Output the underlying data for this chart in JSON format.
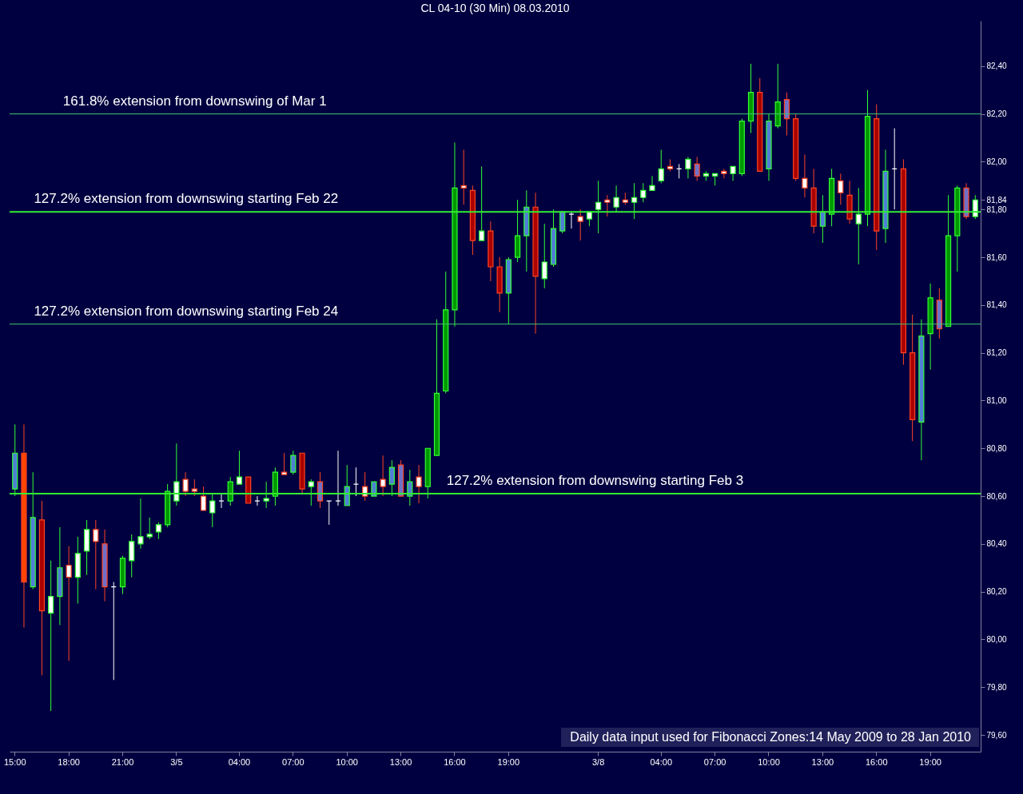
{
  "chart_data": {
    "type": "candlestick",
    "title": "CL 04-10 (30 Min)  08.03.2010",
    "categories": [
      "15:00",
      null,
      null,
      null,
      null,
      null,
      "18:00",
      null,
      null,
      null,
      null,
      null,
      "21:00",
      null,
      null,
      null,
      null,
      null,
      "3/5",
      null,
      null,
      null,
      null,
      null,
      null,
      "04:00",
      null,
      null,
      null,
      null,
      null,
      "07:00",
      null,
      null,
      null,
      null,
      null,
      "10:00",
      null,
      null,
      null,
      null,
      null,
      "13:00",
      null,
      null,
      null,
      null,
      null,
      "16:00",
      null,
      null,
      null,
      null,
      null,
      "19:00",
      null,
      null,
      null,
      null,
      null,
      null,
      null,
      null,
      null,
      "3/8",
      null,
      null,
      null,
      null,
      null,
      null,
      "04:00",
      null,
      null,
      null,
      null,
      null,
      "07:00",
      null,
      null,
      null,
      null,
      null,
      "10:00",
      null,
      null,
      null,
      null,
      null,
      "13:00",
      null,
      null,
      null,
      null,
      null,
      "16:00",
      null,
      null,
      null,
      null,
      null,
      "19:00",
      null,
      null,
      null,
      null,
      null
    ],
    "ohlc": [
      [
        80.63,
        80.9,
        80.6,
        80.78
      ],
      [
        80.78,
        80.9,
        80.05,
        80.24
      ],
      [
        80.22,
        80.7,
        80.21,
        80.51
      ],
      [
        80.5,
        80.58,
        79.85,
        80.12
      ],
      [
        80.11,
        80.33,
        79.7,
        80.18
      ],
      [
        80.18,
        80.47,
        80.06,
        80.3
      ],
      [
        80.31,
        80.39,
        79.91,
        80.26
      ],
      [
        80.26,
        80.43,
        80.15,
        80.36
      ],
      [
        80.37,
        80.5,
        80.27,
        80.46
      ],
      [
        80.46,
        80.5,
        80.21,
        80.41
      ],
      [
        80.4,
        80.46,
        80.16,
        80.22
      ],
      [
        80.22,
        80.24,
        79.83,
        80.22
      ],
      [
        80.22,
        80.35,
        80.19,
        80.34
      ],
      [
        80.33,
        80.44,
        80.26,
        80.41
      ],
      [
        80.4,
        80.59,
        80.38,
        80.43
      ],
      [
        80.43,
        80.51,
        80.42,
        80.44
      ],
      [
        80.45,
        80.49,
        80.42,
        80.48
      ],
      [
        80.48,
        80.65,
        80.47,
        80.62
      ],
      [
        80.58,
        80.82,
        80.56,
        80.66
      ],
      [
        80.67,
        80.7,
        80.6,
        80.62
      ],
      [
        80.63,
        80.67,
        80.6,
        80.62
      ],
      [
        80.6,
        80.64,
        80.54,
        80.54
      ],
      [
        80.53,
        80.61,
        80.47,
        80.58
      ],
      [
        80.58,
        80.61,
        80.55,
        80.58
      ],
      [
        80.58,
        80.68,
        80.56,
        80.66
      ],
      [
        80.65,
        80.79,
        80.65,
        80.68
      ],
      [
        80.68,
        80.68,
        80.57,
        80.57
      ],
      [
        80.58,
        80.6,
        80.56,
        80.58
      ],
      [
        80.58,
        80.66,
        80.55,
        80.59
      ],
      [
        80.6,
        80.72,
        80.56,
        80.7
      ],
      [
        80.7,
        80.78,
        80.69,
        80.69
      ],
      [
        80.7,
        80.79,
        80.69,
        80.77
      ],
      [
        80.78,
        80.78,
        80.61,
        80.63
      ],
      [
        80.64,
        80.67,
        80.56,
        80.66
      ],
      [
        80.66,
        80.7,
        80.55,
        80.58
      ],
      [
        80.58,
        80.58,
        80.48,
        80.58
      ],
      [
        80.58,
        80.79,
        80.56,
        80.58
      ],
      [
        80.56,
        80.73,
        80.56,
        80.64
      ],
      [
        80.65,
        80.72,
        80.6,
        80.65
      ],
      [
        80.64,
        80.7,
        80.58,
        80.6
      ],
      [
        80.6,
        80.66,
        80.6,
        80.66
      ],
      [
        80.67,
        80.77,
        80.6,
        80.64
      ],
      [
        80.65,
        80.75,
        80.6,
        80.72
      ],
      [
        80.73,
        80.75,
        80.6,
        80.6
      ],
      [
        80.6,
        80.71,
        80.56,
        80.66
      ],
      [
        80.68,
        80.73,
        80.57,
        80.64
      ],
      [
        80.64,
        80.8,
        80.59,
        80.8
      ],
      [
        80.77,
        81.34,
        80.77,
        81.03
      ],
      [
        81.04,
        81.54,
        81.03,
        81.38
      ],
      [
        81.38,
        82.08,
        81.31,
        81.89
      ],
      [
        81.9,
        82.05,
        81.82,
        81.89
      ],
      [
        81.88,
        81.9,
        81.61,
        81.67
      ],
      [
        81.67,
        81.98,
        81.67,
        81.71
      ],
      [
        81.71,
        81.75,
        81.5,
        81.56
      ],
      [
        81.56,
        81.6,
        81.37,
        81.45
      ],
      [
        81.45,
        81.6,
        81.32,
        81.59
      ],
      [
        81.6,
        81.84,
        81.58,
        81.69
      ],
      [
        81.69,
        81.88,
        81.54,
        81.81
      ],
      [
        81.81,
        81.87,
        81.28,
        81.52
      ],
      [
        81.51,
        81.74,
        81.47,
        81.58
      ],
      [
        81.57,
        81.8,
        81.56,
        81.72
      ],
      [
        81.71,
        81.79,
        81.7,
        81.79
      ],
      [
        81.78,
        81.79,
        81.72,
        81.78
      ],
      [
        81.77,
        81.8,
        81.67,
        81.75
      ],
      [
        81.76,
        81.79,
        81.73,
        81.79
      ],
      [
        81.8,
        81.92,
        81.7,
        81.83
      ],
      [
        81.84,
        81.86,
        81.77,
        81.83
      ],
      [
        81.81,
        81.9,
        81.79,
        81.85
      ],
      [
        81.84,
        81.87,
        81.82,
        81.83
      ],
      [
        81.83,
        81.91,
        81.76,
        81.85
      ],
      [
        81.85,
        81.91,
        81.83,
        81.88
      ],
      [
        81.88,
        81.94,
        81.88,
        81.9
      ],
      [
        81.92,
        82.05,
        81.91,
        81.97
      ],
      [
        81.98,
        82.01,
        81.96,
        81.97
      ],
      [
        81.97,
        81.99,
        81.93,
        81.97
      ],
      [
        81.97,
        82.02,
        81.93,
        82.01
      ],
      [
        81.99,
        82.02,
        81.92,
        81.94
      ],
      [
        81.94,
        81.96,
        81.92,
        81.95
      ],
      [
        81.94,
        81.95,
        81.9,
        81.95
      ],
      [
        81.96,
        81.97,
        81.93,
        81.95
      ],
      [
        81.95,
        81.98,
        81.92,
        81.98
      ],
      [
        81.95,
        82.18,
        81.94,
        82.17
      ],
      [
        82.17,
        82.41,
        82.12,
        82.29
      ],
      [
        82.29,
        82.35,
        81.96,
        81.96
      ],
      [
        81.97,
        82.2,
        81.92,
        82.17
      ],
      [
        82.15,
        82.41,
        82.14,
        82.25
      ],
      [
        82.26,
        82.29,
        82.11,
        82.18
      ],
      [
        82.18,
        82.2,
        81.92,
        81.93
      ],
      [
        81.93,
        82.03,
        81.85,
        81.89
      ],
      [
        81.89,
        81.97,
        81.7,
        81.73
      ],
      [
        81.73,
        81.86,
        81.66,
        81.79
      ],
      [
        81.78,
        81.97,
        81.73,
        81.93
      ],
      [
        81.92,
        81.95,
        81.82,
        81.87
      ],
      [
        81.86,
        81.92,
        81.74,
        81.76
      ],
      [
        81.74,
        81.89,
        81.57,
        81.78
      ],
      [
        81.78,
        82.3,
        81.73,
        82.19
      ],
      [
        82.18,
        82.24,
        81.63,
        81.71
      ],
      [
        81.72,
        82.05,
        81.66,
        81.96
      ],
      [
        81.97,
        82.14,
        81.8,
        81.97
      ],
      [
        81.97,
        82.01,
        81.15,
        81.2
      ],
      [
        81.2,
        81.36,
        80.83,
        80.92
      ],
      [
        80.91,
        81.34,
        80.75,
        81.27
      ],
      [
        81.28,
        81.49,
        81.13,
        81.43
      ],
      [
        81.42,
        81.47,
        81.26,
        81.3
      ],
      [
        81.31,
        81.86,
        81.31,
        81.69
      ],
      [
        81.69,
        81.9,
        81.54,
        81.89
      ],
      [
        81.89,
        81.91,
        81.76,
        81.77
      ],
      [
        81.77,
        81.86,
        81.76,
        81.84
      ]
    ],
    "colors": [
      "#4f7fd6",
      "#ff4500",
      "#4f7fd6",
      "#aa0000",
      "#ffffff",
      "#4f7fd6",
      "#ffffff",
      "#ffffff",
      "#ffffff",
      "#ffffff",
      "#7070c8",
      "#ffffff",
      "#009900",
      "#ffffff",
      "#ffffff",
      "#ffffff",
      "#ffffff",
      "#009900",
      "#ffffff",
      "#ffffff",
      "#ffffff",
      "#ffffff",
      "#ffffff",
      "#ffffff",
      "#009900",
      "#ffffff",
      "#aa0000",
      "#ffffff",
      "#ffffff",
      "#009900",
      "#ffffff",
      "#4f7fd6",
      "#aa0000",
      "#ffffff",
      "#7070c8",
      "#ffffff",
      "#ffffff",
      "#4f7fd6",
      "#ffffff",
      "#ffffff",
      "#4f7fd6",
      "#ffffff",
      "#4f7fd6",
      "#7070c8",
      "#4f7fd6",
      "#ffffff",
      "#009900",
      "#009900",
      "#009900",
      "#009900",
      "#ffffff",
      "#aa0000",
      "#ffffff",
      "#aa0000",
      "#aa0000",
      "#4f7fd6",
      "#009900",
      "#4f7fd6",
      "#aa0000",
      "#ffffff",
      "#4f7fd6",
      "#4f7fd6",
      "#ffffff",
      "#ffffff",
      "#ffffff",
      "#ffffff",
      "#ffffff",
      "#ffffff",
      "#ffffff",
      "#ffffff",
      "#ffffff",
      "#ffffff",
      "#ffffff",
      "#ffffff",
      "#ffffff",
      "#ffffff",
      "#7070c8",
      "#ffffff",
      "#ffffff",
      "#ffffff",
      "#ffffff",
      "#009900",
      "#009900",
      "#aa0000",
      "#4f7fd6",
      "#009900",
      "#7070c8",
      "#aa0000",
      "#ffffff",
      "#aa0000",
      "#4f7fd6",
      "#009900",
      "#ffffff",
      "#aa0000",
      "#ffffff",
      "#009900",
      "#aa0000",
      "#4f7fd6",
      "#ffffff",
      "#aa0000",
      "#aa0000",
      "#4f7fd6",
      "#009900",
      "#7070c8",
      "#009900",
      "#009900",
      "#7070c8",
      "#ffffff"
    ],
    "ylim": [
      79.53,
      82.59
    ],
    "yticks": [
      {
        "value": 79.6,
        "label": "79,60"
      },
      {
        "value": 79.8,
        "label": "79,80"
      },
      {
        "value": 80.0,
        "label": "80,00"
      },
      {
        "value": 80.2,
        "label": "80,20"
      },
      {
        "value": 80.4,
        "label": "80,40"
      },
      {
        "value": 80.6,
        "label": "80,60"
      },
      {
        "value": 80.8,
        "label": "80,80"
      },
      {
        "value": 81.0,
        "label": "81,00"
      },
      {
        "value": 81.2,
        "label": "81,20"
      },
      {
        "value": 81.4,
        "label": "81,40"
      },
      {
        "value": 81.6,
        "label": "81,60"
      },
      {
        "value": 81.8,
        "label": "81,80"
      },
      {
        "value": 81.84,
        "label": "81,84"
      },
      {
        "value": 82.0,
        "label": "82,00"
      },
      {
        "value": 82.2,
        "label": "82,20"
      },
      {
        "value": 82.4,
        "label": "82,40"
      }
    ],
    "ref_lines": [
      {
        "axis": "y",
        "value": 82.2,
        "label": "161.8% extension from downswing of Mar 1",
        "color": "#40c870"
      },
      {
        "axis": "y",
        "value": 81.79,
        "label": "127.2% extension from downswing starting Feb 22",
        "color": "#33ee33"
      },
      {
        "axis": "y",
        "value": 81.32,
        "label": "127.2% extension from downswing starting Feb 24",
        "color": "#40c870"
      },
      {
        "axis": "y",
        "value": 80.61,
        "label": "127.2% extension from downswing starting Feb 3",
        "color": "#33ee33"
      }
    ],
    "annotations": [
      "Daily data input used for Fibonacci Zones:14 May 2009 to 28 Jan 2010"
    ]
  }
}
